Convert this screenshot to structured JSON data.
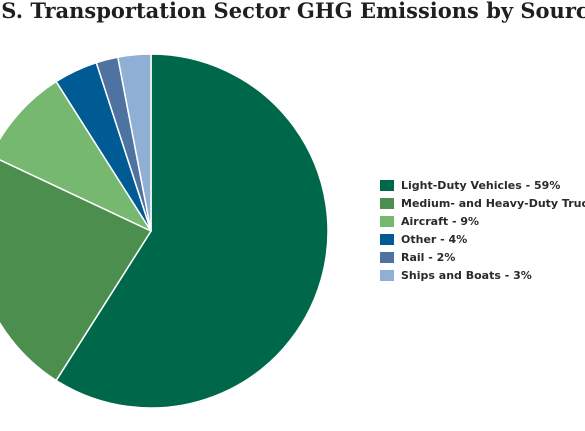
{
  "chart_data": {
    "type": "pie",
    "title": ".S. Transportation Sector GHG Emissions by Source",
    "legend_position": "right",
    "slices": [
      {
        "label": "Light-Duty Vehicles - 59%",
        "value": 59,
        "color": "#00684a"
      },
      {
        "label": "Medium- and Heavy-Duty Truc",
        "value": 23,
        "color": "#4b8e4e"
      },
      {
        "label": "Aircraft - 9%",
        "value": 9,
        "color": "#76b870"
      },
      {
        "label": "Other - 4%",
        "value": 4,
        "color": "#005a93"
      },
      {
        "label": "Rail - 2%",
        "value": 2,
        "color": "#4f73a1"
      },
      {
        "label": "Ships and Boats - 3%",
        "value": 3,
        "color": "#8fb0d4"
      }
    ]
  }
}
